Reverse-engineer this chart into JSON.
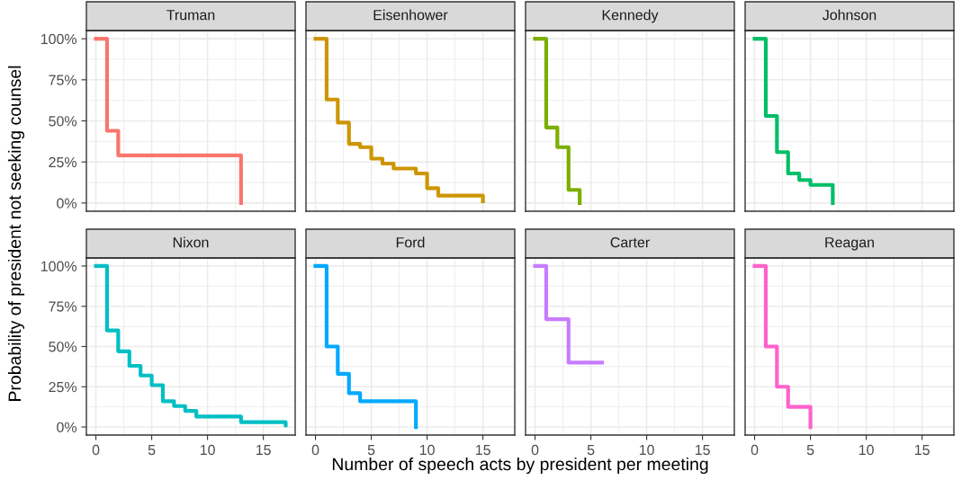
{
  "chart_data": [
    {
      "type": "step",
      "title": "Truman",
      "ylabel": "Probability of president not seeking counsel",
      "x": [
        0,
        1,
        2,
        13
      ],
      "series": [
        {
          "color": "#f8766d",
          "values": [
            100,
            44,
            29,
            0
          ]
        }
      ],
      "xlim": [
        -0.85,
        17.85
      ],
      "ylim": [
        -5,
        105
      ],
      "xticks": [
        {
          "value": 0,
          "label": null
        },
        {
          "value": 5,
          "label": null
        },
        {
          "value": 10,
          "label": null
        },
        {
          "value": 15,
          "label": null
        }
      ],
      "yticks": [
        {
          "value": 0,
          "label": "0%"
        },
        {
          "value": 25,
          "label": "25%"
        },
        {
          "value": 50,
          "label": "50%"
        },
        {
          "value": 75,
          "label": "75%"
        },
        {
          "value": 100,
          "label": "100%"
        }
      ],
      "grid": true,
      "tick_labels": "y"
    },
    {
      "type": "step",
      "title": "Eisenhower",
      "x": [
        0,
        1,
        2,
        3,
        4,
        5,
        6,
        7,
        9,
        10,
        11,
        15
      ],
      "series": [
        {
          "color": "#cd9600",
          "values": [
            100,
            63,
            49,
            36,
            34,
            27,
            24,
            21,
            18,
            9,
            4.5,
            1
          ]
        }
      ],
      "xlim": [
        -0.85,
        17.85
      ],
      "ylim": [
        -5,
        105
      ],
      "xticks": [
        {
          "value": 0,
          "label": null
        },
        {
          "value": 5,
          "label": null
        },
        {
          "value": 10,
          "label": null
        },
        {
          "value": 15,
          "label": null
        }
      ],
      "yticks": [
        {
          "value": 0,
          "label": null
        },
        {
          "value": 25,
          "label": null
        },
        {
          "value": 50,
          "label": null
        },
        {
          "value": 75,
          "label": null
        },
        {
          "value": 100,
          "label": null
        }
      ],
      "grid": true,
      "tick_labels": false
    },
    {
      "type": "step",
      "title": "Kennedy",
      "x": [
        0,
        1,
        2,
        3,
        4
      ],
      "series": [
        {
          "color": "#7cae00",
          "values": [
            100,
            46,
            34,
            8,
            0
          ]
        }
      ],
      "xlim": [
        -0.85,
        17.85
      ],
      "ylim": [
        -5,
        105
      ],
      "xticks": [
        {
          "value": 0,
          "label": null
        },
        {
          "value": 5,
          "label": null
        },
        {
          "value": 10,
          "label": null
        },
        {
          "value": 15,
          "label": null
        }
      ],
      "yticks": [
        {
          "value": 0,
          "label": null
        },
        {
          "value": 25,
          "label": null
        },
        {
          "value": 50,
          "label": null
        },
        {
          "value": 75,
          "label": null
        },
        {
          "value": 100,
          "label": null
        }
      ],
      "grid": true,
      "tick_labels": false
    },
    {
      "type": "step",
      "title": "Johnson",
      "x": [
        0,
        1,
        2,
        3,
        4,
        5,
        7
      ],
      "series": [
        {
          "color": "#00be67",
          "values": [
            100,
            53,
            31,
            18,
            14,
            11,
            0
          ]
        }
      ],
      "xlim": [
        -0.85,
        17.85
      ],
      "ylim": [
        -5,
        105
      ],
      "xticks": [
        {
          "value": 0,
          "label": null
        },
        {
          "value": 5,
          "label": null
        },
        {
          "value": 10,
          "label": null
        },
        {
          "value": 15,
          "label": null
        }
      ],
      "yticks": [
        {
          "value": 0,
          "label": null
        },
        {
          "value": 25,
          "label": null
        },
        {
          "value": 50,
          "label": null
        },
        {
          "value": 75,
          "label": null
        },
        {
          "value": 100,
          "label": null
        }
      ],
      "grid": true,
      "tick_labels": false
    },
    {
      "type": "step",
      "title": "Nixon",
      "xlabel": "Number of speech acts by president per meeting",
      "x": [
        0,
        1,
        2,
        3,
        4,
        5,
        6,
        7,
        8,
        9,
        13,
        17
      ],
      "series": [
        {
          "color": "#00bfc4",
          "values": [
            100,
            60,
            47,
            38,
            32,
            26,
            16,
            13,
            10,
            6.5,
            3,
            1
          ]
        }
      ],
      "xlim": [
        -0.85,
        17.85
      ],
      "ylim": [
        -5,
        105
      ],
      "xticks": [
        0,
        5,
        10,
        15
      ],
      "yticks": [
        {
          "value": 0,
          "label": "0%"
        },
        {
          "value": 25,
          "label": "25%"
        },
        {
          "value": 50,
          "label": "50%"
        },
        {
          "value": 75,
          "label": "75%"
        },
        {
          "value": 100,
          "label": "100%"
        }
      ],
      "grid": true
    },
    {
      "type": "step",
      "title": "Ford",
      "x": [
        0,
        1,
        2,
        3,
        4,
        9
      ],
      "series": [
        {
          "color": "#00a9ff",
          "values": [
            100,
            50,
            33,
            21,
            16,
            0
          ]
        }
      ],
      "xlim": [
        -0.85,
        17.85
      ],
      "ylim": [
        -5,
        105
      ],
      "xticks": [
        0,
        5,
        10,
        15
      ],
      "yticks": [
        {
          "value": 0,
          "label": null
        },
        {
          "value": 25,
          "label": null
        },
        {
          "value": 50,
          "label": null
        },
        {
          "value": 75,
          "label": null
        },
        {
          "value": 100,
          "label": null
        }
      ],
      "grid": true,
      "tick_labels": "x"
    },
    {
      "type": "step",
      "title": "Carter",
      "x": [
        0,
        1,
        3,
        6
      ],
      "series": [
        {
          "color": "#c77cff",
          "values": [
            100,
            67,
            40,
            40
          ]
        }
      ],
      "xlim": [
        -0.85,
        17.85
      ],
      "ylim": [
        -5,
        105
      ],
      "xticks": [
        0,
        5,
        10,
        15
      ],
      "yticks": [
        {
          "value": 0,
          "label": null
        },
        {
          "value": 25,
          "label": null
        },
        {
          "value": 50,
          "label": null
        },
        {
          "value": 75,
          "label": null
        },
        {
          "value": 100,
          "label": null
        }
      ],
      "grid": true,
      "tick_labels": "x"
    },
    {
      "type": "step",
      "title": "Reagan",
      "x": [
        0,
        1,
        2,
        3,
        5
      ],
      "series": [
        {
          "color": "#ff61cc",
          "values": [
            100,
            50,
            25,
            12.5,
            0
          ]
        }
      ],
      "xlim": [
        -0.85,
        17.85
      ],
      "ylim": [
        -5,
        105
      ],
      "xticks": [
        0,
        5,
        10,
        15
      ],
      "yticks": [
        {
          "value": 0,
          "label": null
        },
        {
          "value": 25,
          "label": null
        },
        {
          "value": 50,
          "label": null
        },
        {
          "value": 75,
          "label": null
        },
        {
          "value": 100,
          "label": null
        }
      ],
      "grid": true,
      "tick_labels": "x"
    }
  ]
}
